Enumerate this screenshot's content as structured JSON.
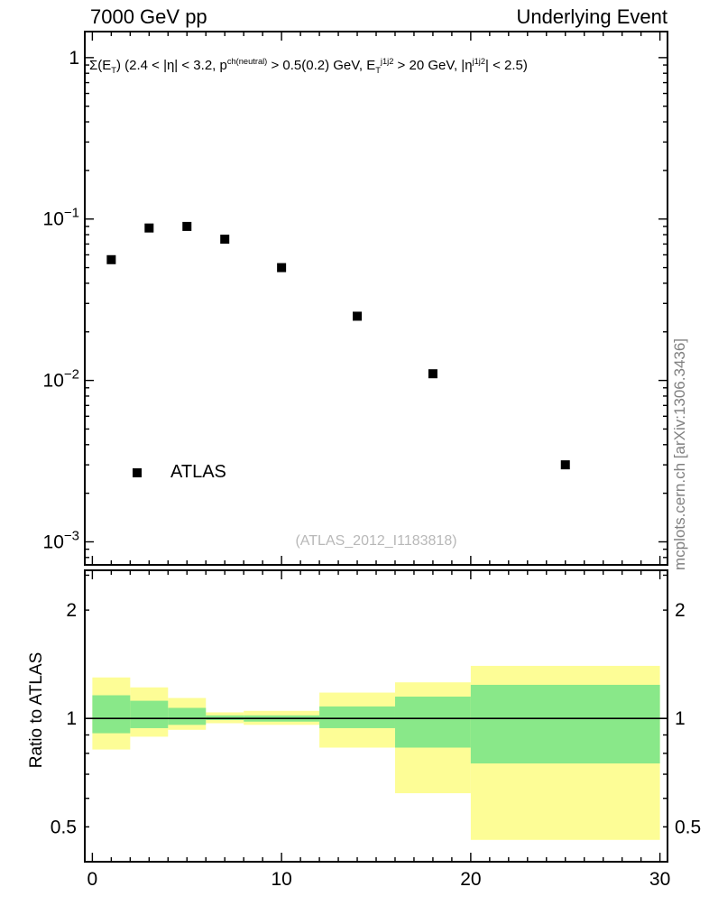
{
  "header": {
    "left_title": "7000 GeV pp",
    "right_title": "Underlying Event"
  },
  "annotation_segments": [
    {
      "t": "Σ(E"
    },
    {
      "t": "T",
      "style": "sub"
    },
    {
      "t": ") (2.4 < |η| < 3.2, p"
    },
    {
      "t": "ch(neutral)",
      "style": "sup"
    },
    {
      "t": " > 0.5(0.2) GeV, E"
    },
    {
      "t": "T",
      "style": "sub"
    },
    {
      "t": "j1j2",
      "style": "sup"
    },
    {
      "t": " > 20 GeV, |η"
    },
    {
      "t": "j1j2",
      "style": "sup"
    },
    {
      "t": "| < 2.5)"
    }
  ],
  "legend": {
    "label": "ATLAS"
  },
  "watermark": "(ATLAS_2012_I1183818)",
  "side_note": "mcplots.cern.ch [arXiv:1306.3436]",
  "ratio_ylabel": "Ratio to ATLAS",
  "chart_data": {
    "type": "scatter",
    "title": "Underlying Event, 7000 GeV pp",
    "xlabel": "",
    "xlim": [
      -0.4,
      30.4
    ],
    "xticks_major": [
      0,
      10,
      20,
      30
    ],
    "xtick_minor_step": 1,
    "main_panel": {
      "yscale": "log",
      "ylim": [
        0.00072,
        1.45
      ],
      "yticks": [
        {
          "v": 1,
          "t": "1"
        },
        {
          "v": 0.1,
          "t": "10",
          "e": "−1"
        },
        {
          "v": 0.01,
          "t": "10",
          "e": "−2"
        },
        {
          "v": 0.001,
          "t": "10",
          "e": "−3"
        }
      ],
      "series": [
        {
          "name": "ATLAS",
          "marker": "filled-square",
          "color": "#000000",
          "x": [
            1,
            3,
            5,
            7,
            10,
            14,
            18,
            25
          ],
          "y": [
            0.056,
            0.088,
            0.09,
            0.075,
            0.05,
            0.025,
            0.011,
            0.003
          ]
        }
      ]
    },
    "ratio_panel": {
      "yscale": "log",
      "ylim": [
        0.4,
        2.58
      ],
      "unity_line": 1,
      "yticks": [
        {
          "v": 2,
          "t": "2"
        },
        {
          "v": 1,
          "t": "1"
        },
        {
          "v": 0.5,
          "t": "0.5"
        }
      ],
      "ytick_minor": [
        0.4,
        0.5,
        0.6,
        0.7,
        0.8,
        0.9,
        2,
        2.5
      ],
      "bands": [
        {
          "x0": 0,
          "x1": 2,
          "outer_lo": 0.82,
          "outer_hi": 1.3,
          "inner_lo": 0.91,
          "inner_hi": 1.16
        },
        {
          "x0": 2,
          "x1": 4,
          "outer_lo": 0.89,
          "outer_hi": 1.22,
          "inner_lo": 0.94,
          "inner_hi": 1.12
        },
        {
          "x0": 4,
          "x1": 6,
          "outer_lo": 0.93,
          "outer_hi": 1.14,
          "inner_lo": 0.96,
          "inner_hi": 1.07
        },
        {
          "x0": 6,
          "x1": 8,
          "outer_lo": 0.97,
          "outer_hi": 1.04,
          "inner_lo": 0.99,
          "inner_hi": 1.02
        },
        {
          "x0": 8,
          "x1": 12,
          "outer_lo": 0.96,
          "outer_hi": 1.05,
          "inner_lo": 0.98,
          "inner_hi": 1.02
        },
        {
          "x0": 12,
          "x1": 16,
          "outer_lo": 0.83,
          "outer_hi": 1.18,
          "inner_lo": 0.94,
          "inner_hi": 1.08
        },
        {
          "x0": 16,
          "x1": 20,
          "outer_lo": 0.62,
          "outer_hi": 1.26,
          "inner_lo": 0.83,
          "inner_hi": 1.15
        },
        {
          "x0": 20,
          "x1": 30,
          "outer_lo": 0.46,
          "outer_hi": 1.4,
          "inner_lo": 0.75,
          "inner_hi": 1.24
        }
      ]
    },
    "layout": {
      "frame_left": 94,
      "frame_right": 740,
      "main_top": 35,
      "main_bottom": 626,
      "ratio_top": 632,
      "ratio_bottom": 955,
      "x_label_baseline": 981,
      "tick_major_len": 10,
      "tick_minor_len": 5,
      "marker_size": 10,
      "legend_marker_px": [
        152,
        524
      ],
      "band_outer_color": "#fdfd96",
      "band_inner_color": "#89e889",
      "frame_color": "#000000"
    }
  }
}
